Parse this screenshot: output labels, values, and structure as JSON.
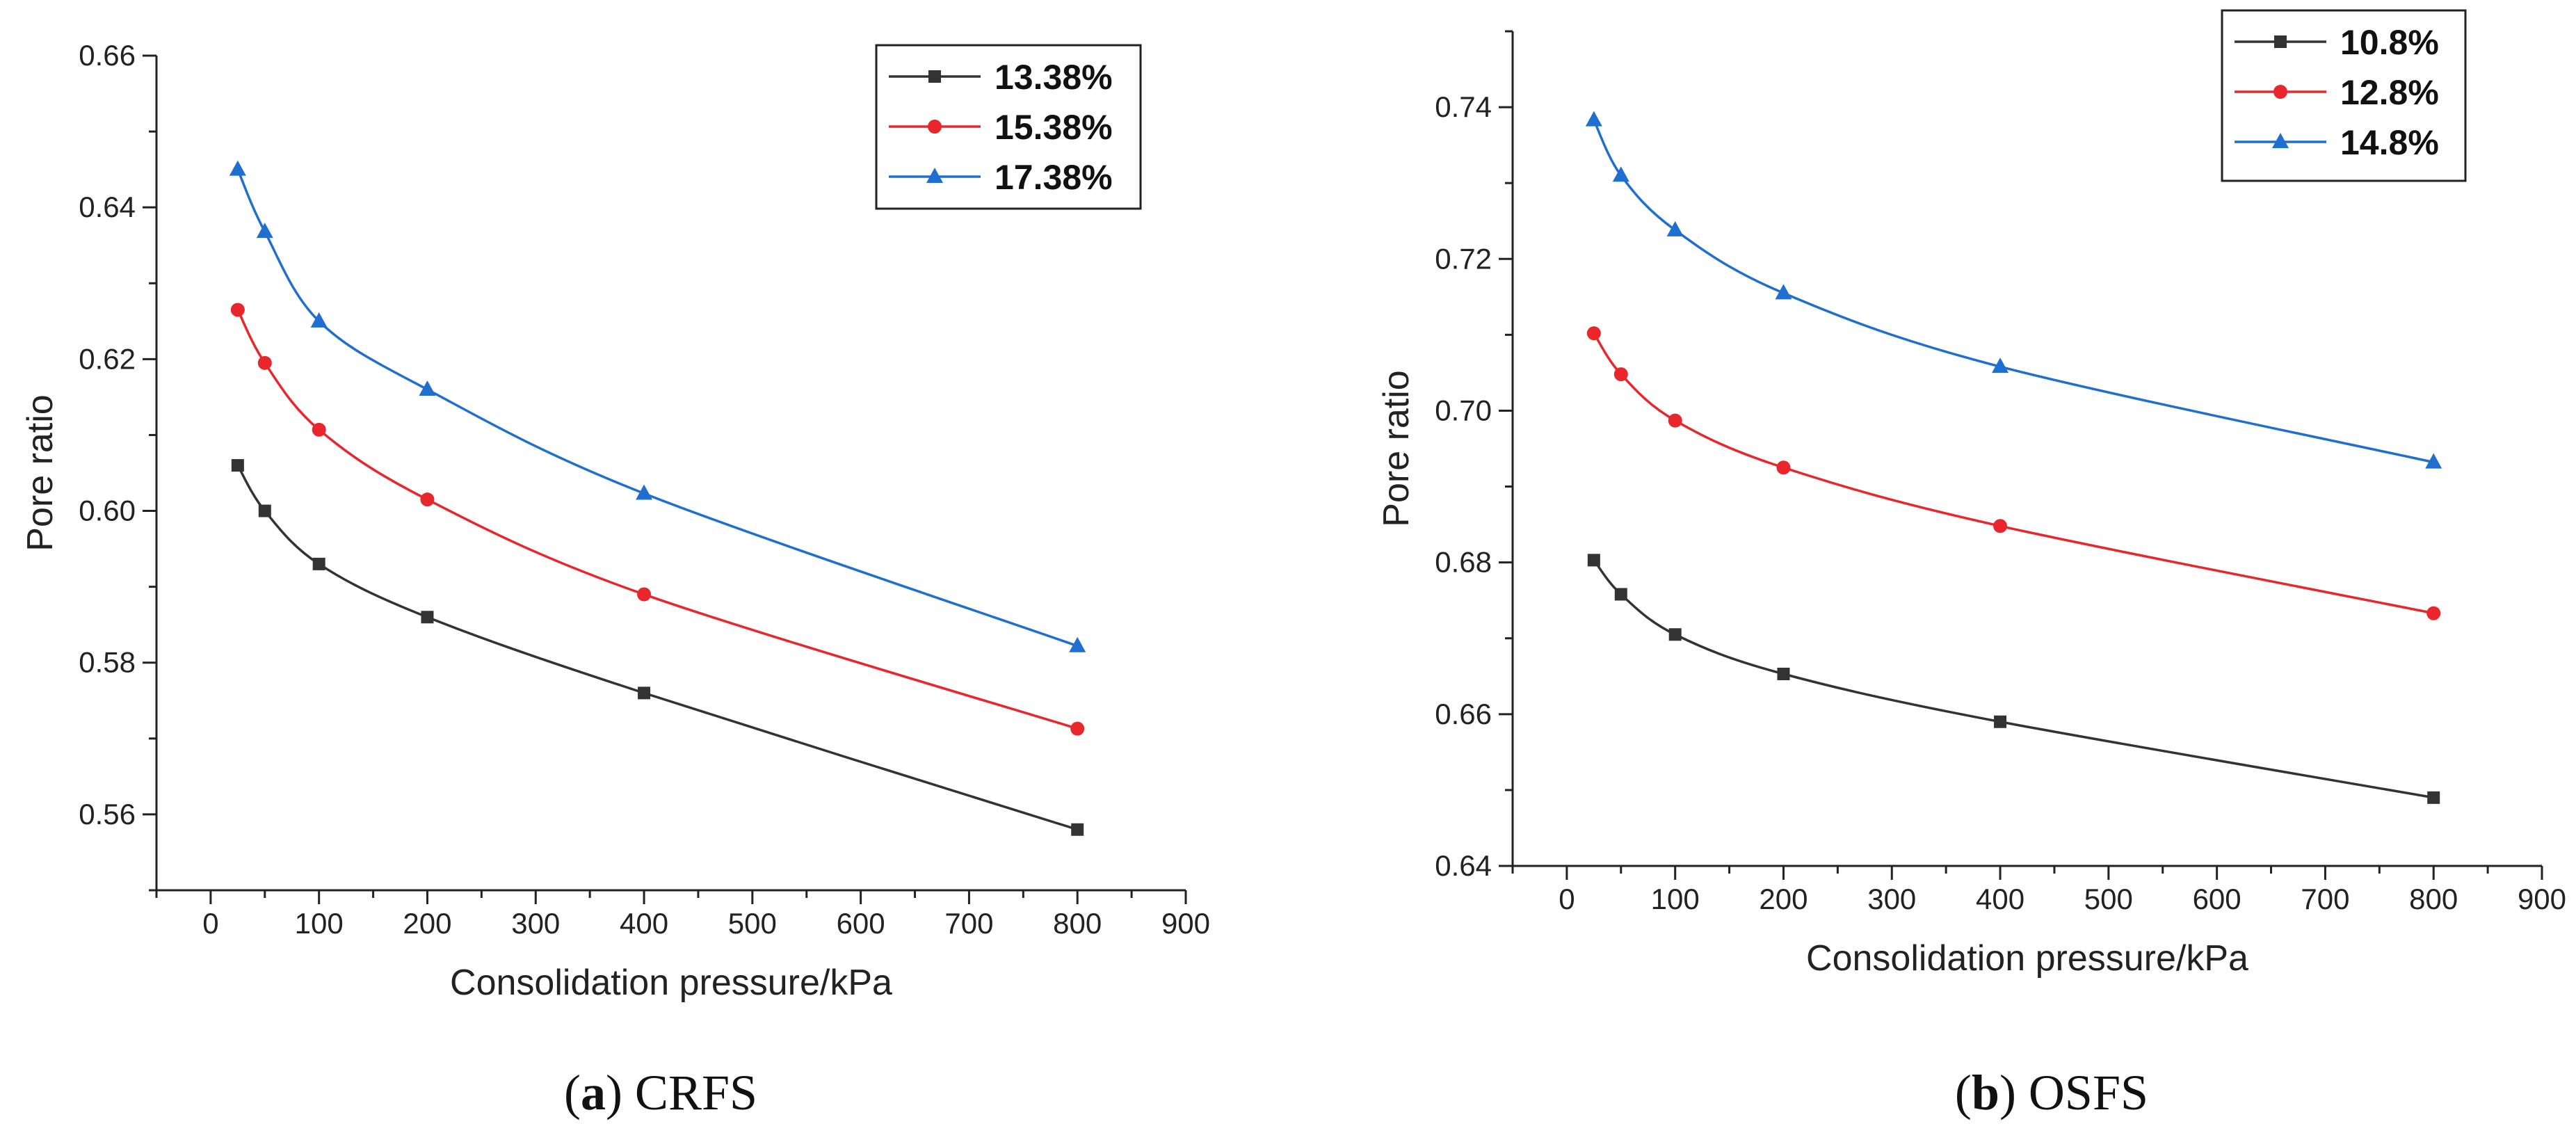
{
  "chart_data": [
    {
      "type": "line",
      "caption": {
        "prefix": "(",
        "letter": "a",
        "suffix": ") CRFS"
      },
      "xlabel": "Consolidation pressure/kPa",
      "ylabel": "Pore ratio",
      "xlim": [
        -50,
        900
      ],
      "ylim": [
        0.55,
        0.66
      ],
      "xticks": [
        0,
        100,
        200,
        300,
        400,
        500,
        600,
        700,
        800,
        900
      ],
      "yticks": [
        "0.56",
        "0.58",
        "0.60",
        "0.62",
        "0.64",
        "0.66"
      ],
      "legend_position": "top-right",
      "series": [
        {
          "name": "13.38%",
          "color": "#333333",
          "marker": "square",
          "x": [
            25,
            50,
            100,
            200,
            400,
            800
          ],
          "y": [
            0.606,
            0.6,
            0.593,
            0.586,
            0.576,
            0.558
          ]
        },
        {
          "name": "15.38%",
          "color": "#e8262b",
          "marker": "circle",
          "x": [
            25,
            50,
            100,
            200,
            400,
            800
          ],
          "y": [
            0.6265,
            0.6195,
            0.6107,
            0.6015,
            0.589,
            0.5713
          ]
        },
        {
          "name": "17.38%",
          "color": "#1f6fd1",
          "marker": "triangle",
          "x": [
            25,
            50,
            100,
            200,
            400,
            800
          ],
          "y": [
            0.645,
            0.6368,
            0.625,
            0.616,
            0.6023,
            0.5822
          ]
        }
      ]
    },
    {
      "type": "line",
      "caption": {
        "prefix": "(",
        "letter": "b",
        "suffix": ") OSFS"
      },
      "xlabel": "Consolidation pressure/kPa",
      "ylabel": "Pore ratio",
      "xlim": [
        -50,
        900
      ],
      "ylim": [
        0.64,
        0.75
      ],
      "xticks": [
        0,
        100,
        200,
        300,
        400,
        500,
        600,
        700,
        800,
        900
      ],
      "yticks": [
        "0.64",
        "0.66",
        "0.68",
        "0.70",
        "0.72",
        "0.74"
      ],
      "legend_position": "top-right",
      "series": [
        {
          "name": "10.8%",
          "color": "#333333",
          "marker": "square",
          "x": [
            25,
            50,
            100,
            200,
            400,
            800
          ],
          "y": [
            0.6803,
            0.6758,
            0.6705,
            0.6653,
            0.659,
            0.649
          ]
        },
        {
          "name": "12.8%",
          "color": "#e8262b",
          "marker": "circle",
          "x": [
            25,
            50,
            100,
            200,
            400,
            800
          ],
          "y": [
            0.7102,
            0.7048,
            0.6987,
            0.6925,
            0.6848,
            0.6733
          ]
        },
        {
          "name": "14.8%",
          "color": "#1f6fd1",
          "marker": "triangle",
          "x": [
            25,
            50,
            100,
            200,
            400,
            800
          ],
          "y": [
            0.7383,
            0.731,
            0.7238,
            0.7155,
            0.7058,
            0.6932
          ]
        }
      ]
    }
  ]
}
